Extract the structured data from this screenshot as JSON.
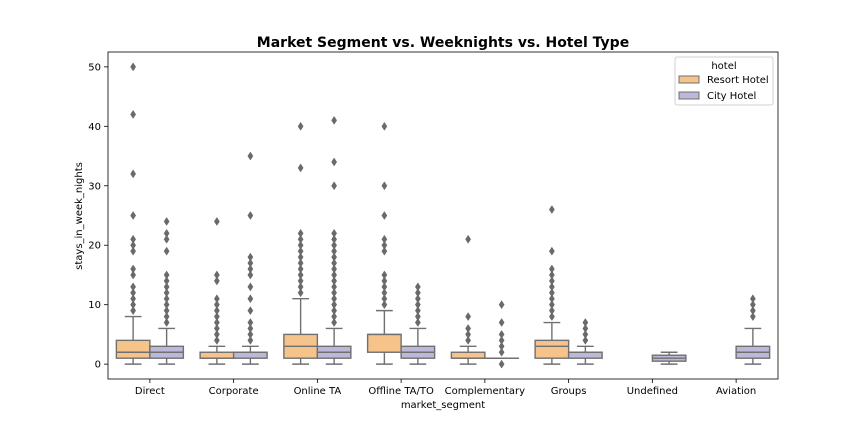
{
  "chart_data": {
    "type": "box",
    "title": "Market Segment vs. Weeknights vs. Hotel Type",
    "xlabel": "market_segment",
    "ylabel": "stays_in_week_nights",
    "ylim": [
      -2.5,
      52.5
    ],
    "yticks": [
      0,
      10,
      20,
      30,
      40,
      50
    ],
    "categories": [
      "Direct",
      "Corporate",
      "Online TA",
      "Offline TA/TO",
      "Complementary",
      "Groups",
      "Undefined",
      "Aviation"
    ],
    "legend": {
      "title": "hotel",
      "placement": "top-right"
    },
    "series": [
      {
        "name": "Resort Hotel",
        "color": "#f6c48a",
        "boxes": [
          {
            "category": "Direct",
            "whislo": 0,
            "q1": 1,
            "med": 2,
            "q3": 4,
            "whishi": 8,
            "fliers": [
              9,
              10,
              11,
              12,
              13,
              15,
              16,
              19,
              20,
              21,
              25,
              32,
              42,
              50
            ]
          },
          {
            "category": "Corporate",
            "whislo": 0,
            "q1": 1,
            "med": 1,
            "q3": 2,
            "whishi": 3,
            "fliers": [
              4,
              5,
              6,
              7,
              8,
              9,
              10,
              11,
              14,
              15,
              24
            ]
          },
          {
            "category": "Online TA",
            "whislo": 0,
            "q1": 1,
            "med": 3,
            "q3": 5,
            "whishi": 11,
            "fliers": [
              12,
              13,
              14,
              15,
              16,
              17,
              18,
              19,
              20,
              21,
              22,
              33,
              40
            ]
          },
          {
            "category": "Offline TA/TO",
            "whislo": 0,
            "q1": 2,
            "med": 5,
            "q3": 5,
            "whishi": 9,
            "fliers": [
              10,
              11,
              12,
              13,
              14,
              15,
              19,
              20,
              21,
              25,
              30,
              40
            ]
          },
          {
            "category": "Complementary",
            "whislo": 0,
            "q1": 1,
            "med": 1,
            "q3": 2,
            "whishi": 3,
            "fliers": [
              4,
              5,
              6,
              8,
              21
            ]
          },
          {
            "category": "Groups",
            "whislo": 0,
            "q1": 1,
            "med": 3,
            "q3": 4,
            "whishi": 7,
            "fliers": [
              8,
              9,
              10,
              11,
              12,
              13,
              14,
              15,
              16,
              19,
              26
            ]
          },
          null,
          null
        ]
      },
      {
        "name": "City Hotel",
        "color": "#bcb8d9",
        "boxes": [
          {
            "category": "Direct",
            "whislo": 0,
            "q1": 1,
            "med": 2,
            "q3": 3,
            "whishi": 6,
            "fliers": [
              7,
              8,
              9,
              10,
              11,
              12,
              13,
              14,
              15,
              19,
              21,
              22,
              24
            ]
          },
          {
            "category": "Corporate",
            "whislo": 0,
            "q1": 1,
            "med": 2,
            "q3": 2,
            "whishi": 3,
            "fliers": [
              4,
              5,
              6,
              7,
              9,
              11,
              13,
              15,
              16,
              17,
              18,
              25,
              35
            ]
          },
          {
            "category": "Online TA",
            "whislo": 0,
            "q1": 1,
            "med": 2,
            "q3": 3,
            "whishi": 6,
            "fliers": [
              7,
              8,
              9,
              10,
              11,
              12,
              13,
              14,
              15,
              16,
              17,
              18,
              19,
              20,
              21,
              22,
              30,
              34,
              41
            ]
          },
          {
            "category": "Offline TA/TO",
            "whislo": 0,
            "q1": 1,
            "med": 2,
            "q3": 3,
            "whishi": 6,
            "fliers": [
              7,
              8,
              9,
              10,
              11,
              12,
              13
            ]
          },
          {
            "category": "Complementary",
            "whislo": 1,
            "q1": 1,
            "med": 1,
            "q3": 1,
            "whishi": 1,
            "fliers": [
              0,
              2,
              3,
              4,
              5,
              7,
              10
            ]
          },
          {
            "category": "Groups",
            "whislo": 0,
            "q1": 1,
            "med": 2,
            "q3": 2,
            "whishi": 3,
            "fliers": [
              4,
              5,
              6,
              7
            ]
          },
          {
            "category": "Undefined",
            "whislo": 0,
            "q1": 0.5,
            "med": 1,
            "q3": 1.5,
            "whishi": 2,
            "fliers": []
          },
          {
            "category": "Aviation",
            "whislo": 0,
            "q1": 1,
            "med": 2,
            "q3": 3,
            "whishi": 6,
            "fliers": [
              8,
              9,
              10,
              11
            ]
          }
        ]
      }
    ]
  }
}
